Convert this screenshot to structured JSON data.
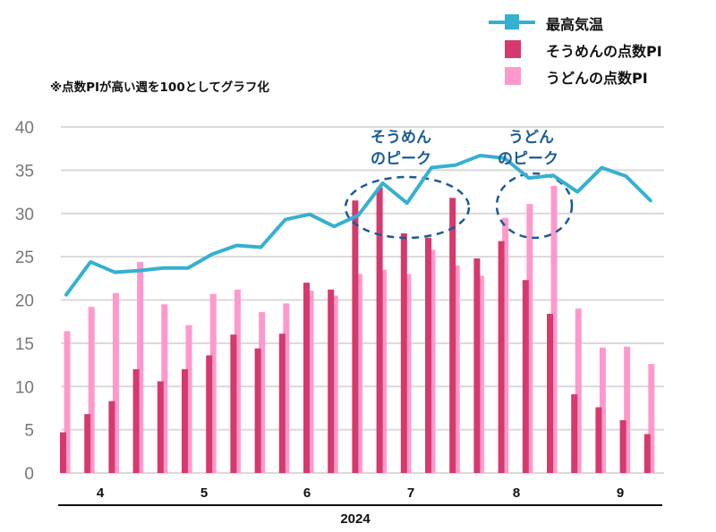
{
  "note": "※点数PIが高い週を100としてグラフ化",
  "annotations": {
    "somen_peak": [
      "そうめん",
      "のピーク"
    ],
    "udon_peak": [
      "うどん",
      "のピーク"
    ]
  },
  "colors": {
    "temp": "#35b0d0",
    "somen": "#d6396c",
    "udon": "#ff99cc",
    "grid": "#d9d9d9",
    "annotation": "#1a5b94"
  },
  "chart_data": {
    "type": "bar",
    "title": "",
    "xlabel": "2024",
    "ylabel": "",
    "ylim": [
      0,
      40
    ],
    "yticks": [
      0,
      5,
      10,
      15,
      20,
      25,
      30,
      35,
      40
    ],
    "grid": true,
    "legend_position": "top-right",
    "month_labels": [
      "4",
      "5",
      "6",
      "7",
      "8",
      "9"
    ],
    "year_label": "2024",
    "weeks": 25,
    "series": [
      {
        "name": "最高気温",
        "kind": "line",
        "values": [
          20.6,
          24.4,
          23.2,
          23.4,
          23.7,
          23.7,
          25.3,
          26.3,
          26.1,
          29.3,
          29.9,
          28.5,
          29.8,
          33.5,
          31.2,
          35.3,
          35.6,
          36.7,
          36.4,
          34.1,
          34.4,
          32.5,
          35.3,
          34.3,
          31.5
        ]
      },
      {
        "name": "そうめんの点数PI",
        "kind": "bar",
        "values": [
          4.7,
          6.8,
          8.3,
          12.0,
          10.6,
          12.0,
          13.6,
          16.0,
          14.4,
          16.1,
          22.0,
          21.2,
          31.5,
          33.0,
          27.7,
          27.2,
          31.8,
          24.8,
          26.8,
          22.3,
          18.4,
          9.1,
          7.6,
          6.1,
          4.5
        ]
      },
      {
        "name": "うどんの点数PI",
        "kind": "bar",
        "values": [
          16.4,
          19.2,
          20.8,
          24.4,
          19.5,
          17.1,
          20.7,
          21.2,
          18.6,
          19.6,
          21.1,
          20.5,
          23.0,
          23.5,
          23.0,
          25.8,
          24.0,
          22.8,
          29.5,
          31.1,
          33.2,
          19.0,
          14.5,
          14.6,
          12.6
        ]
      }
    ]
  }
}
